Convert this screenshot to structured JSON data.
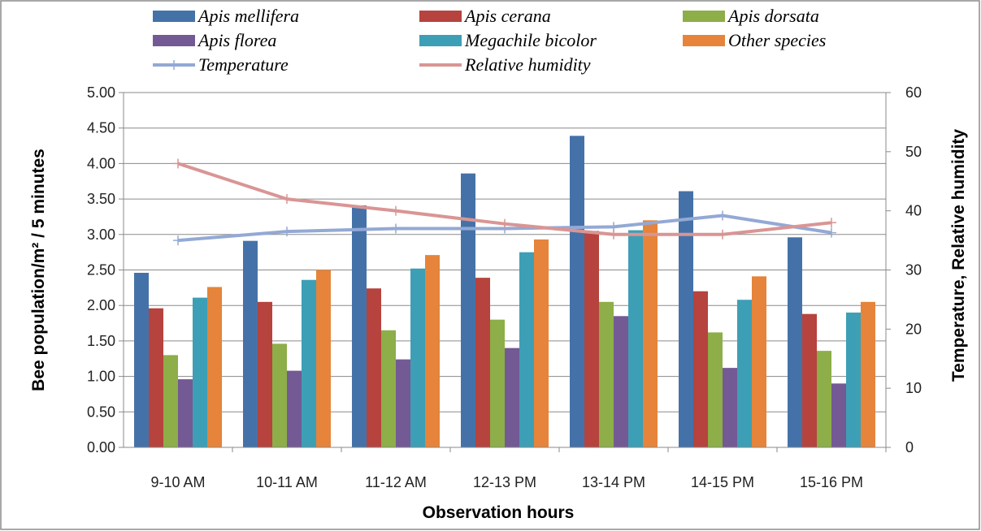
{
  "chart_data": {
    "type": "bar",
    "categories": [
      "9-10 AM",
      "10-11 AM",
      "11-12 AM",
      "12-13 PM",
      "13-14 PM",
      "14-15 PM",
      "15-16 PM"
    ],
    "xlabel": "Observation hours",
    "ylabel": "Bee population/m² / 5 minutes",
    "y2label": "Temperature, Relative humidity",
    "ylim": [
      0,
      5
    ],
    "y2lim": [
      0,
      60
    ],
    "yticks": [
      "0.00",
      "0.50",
      "1.00",
      "1.50",
      "2.00",
      "2.50",
      "3.00",
      "3.50",
      "4.00",
      "4.50",
      "5.00"
    ],
    "y2ticks": [
      "0",
      "10",
      "20",
      "30",
      "40",
      "50",
      "60"
    ],
    "grid": true,
    "legend_position": "top",
    "series": [
      {
        "name": "Apis mellifera",
        "type": "bar",
        "axis": "left",
        "color": "#4472a8",
        "values": [
          2.46,
          2.91,
          3.41,
          3.86,
          4.39,
          3.61,
          2.96
        ]
      },
      {
        "name": "Apis cerana",
        "type": "bar",
        "axis": "left",
        "color": "#b6433e",
        "values": [
          1.96,
          2.05,
          2.24,
          2.39,
          3.05,
          2.2,
          1.88
        ]
      },
      {
        "name": "Apis dorsata",
        "type": "bar",
        "axis": "left",
        "color": "#8dae48",
        "values": [
          1.3,
          1.46,
          1.65,
          1.8,
          2.05,
          1.62,
          1.36
        ]
      },
      {
        "name": "Apis florea",
        "type": "bar",
        "axis": "left",
        "color": "#735a94",
        "values": [
          0.96,
          1.08,
          1.24,
          1.4,
          1.85,
          1.12,
          0.9
        ]
      },
      {
        "name": "Megachile bicolor",
        "type": "bar",
        "axis": "left",
        "color": "#3d9fb5",
        "values": [
          2.11,
          2.36,
          2.52,
          2.75,
          3.06,
          2.08,
          1.9
        ]
      },
      {
        "name": "Other species",
        "type": "bar",
        "axis": "left",
        "color": "#e5843a",
        "values": [
          2.26,
          2.5,
          2.71,
          2.93,
          3.2,
          2.41,
          2.05
        ]
      },
      {
        "name": "Temperature",
        "type": "line",
        "axis": "right",
        "color": "#93a9d5",
        "marker": "plus",
        "values": [
          35.0,
          36.5,
          37.0,
          37.0,
          37.3,
          39.2,
          36.3
        ]
      },
      {
        "name": "Relative humidity",
        "type": "line",
        "axis": "right",
        "color": "#d99594",
        "marker": "plus",
        "values": [
          48.0,
          42.0,
          40.0,
          37.8,
          36.0,
          36.0,
          38.0
        ]
      }
    ]
  }
}
